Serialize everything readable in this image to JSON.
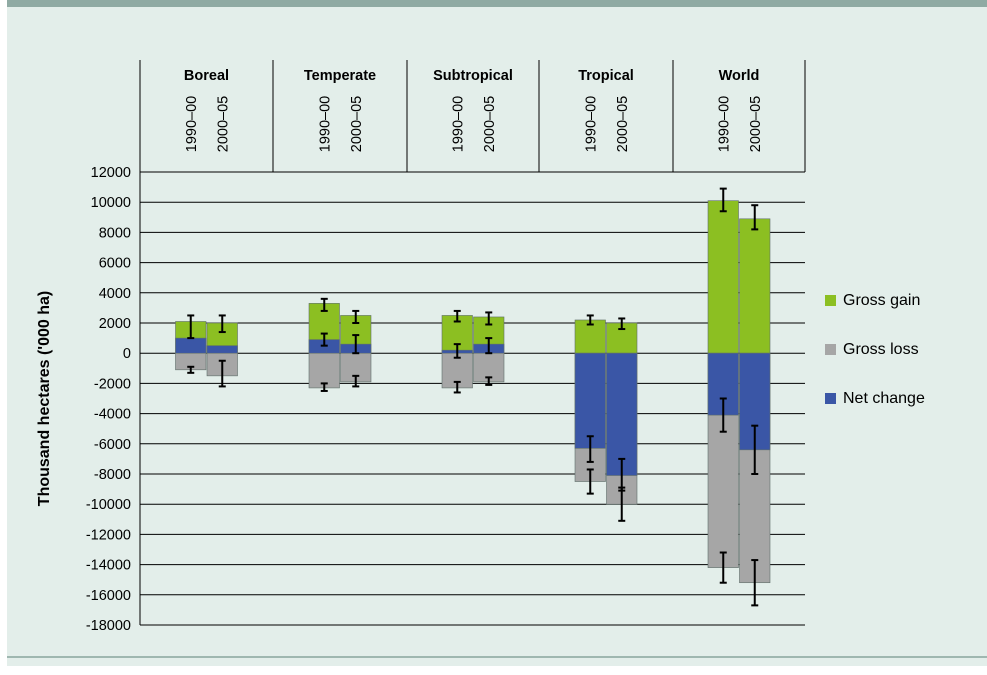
{
  "chart_data": {
    "type": "bar",
    "subtype": "stacked-with-error-bars",
    "ylabel": "Thousand hectares ('000 ha)",
    "ylim": [
      -18000,
      12000
    ],
    "yticks": [
      12000,
      10000,
      8000,
      6000,
      4000,
      2000,
      0,
      -2000,
      -4000,
      -6000,
      -8000,
      -10000,
      -12000,
      -14000,
      -16000,
      -18000
    ],
    "grid": true,
    "legend_position": "right",
    "series_styles": [
      {
        "name": "Gross gain",
        "color": "#8cbf22"
      },
      {
        "name": "Gross loss",
        "color": "#a6a6a6"
      },
      {
        "name": "Net change",
        "color": "#3a56a6"
      }
    ],
    "groups": [
      {
        "region": "Boreal",
        "periods": [
          {
            "label": "1990–00",
            "gain": 2100,
            "loss": -1100,
            "net": 1000,
            "err": {
              "gain": [
                1000,
                2500
              ],
              "loss": [
                -1300,
                -900
              ],
              "net": null
            }
          },
          {
            "label": "2000–05",
            "gain": 2000,
            "loss": -1500,
            "net": 500,
            "err": {
              "gain": [
                1400,
                2500
              ],
              "loss": [
                -2200,
                -500
              ],
              "net": null
            }
          }
        ]
      },
      {
        "region": "Temperate",
        "periods": [
          {
            "label": "1990–00",
            "gain": 3300,
            "loss": -2300,
            "net": 900,
            "err": {
              "gain": [
                2800,
                3600
              ],
              "loss": [
                -2500,
                -2000
              ],
              "net": [
                500,
                1300
              ]
            }
          },
          {
            "label": "2000–05",
            "gain": 2500,
            "loss": -1900,
            "net": 600,
            "err": {
              "gain": [
                2000,
                2800
              ],
              "loss": [
                -2200,
                -1500
              ],
              "net": [
                0,
                1200
              ]
            }
          }
        ]
      },
      {
        "region": "Subtropical",
        "periods": [
          {
            "label": "1990–00",
            "gain": 2500,
            "loss": -2300,
            "net": 200,
            "err": {
              "gain": [
                2100,
                2800
              ],
              "loss": [
                -2600,
                -1900
              ],
              "net": [
                -300,
                600
              ]
            }
          },
          {
            "label": "2000–05",
            "gain": 2400,
            "loss": -1900,
            "net": 600,
            "err": {
              "gain": [
                1900,
                2700
              ],
              "loss": [
                -2100,
                -1600
              ],
              "net": [
                0,
                1000
              ]
            }
          }
        ]
      },
      {
        "region": "Tropical",
        "periods": [
          {
            "label": "1990–00",
            "gain": 2200,
            "loss": -8500,
            "net": -6300,
            "err": {
              "gain": [
                1900,
                2500
              ],
              "loss": [
                -9300,
                -7700
              ],
              "net": [
                -7200,
                -5500
              ]
            }
          },
          {
            "label": "2000–05",
            "gain": 2000,
            "loss": -10000,
            "net": -8100,
            "err": {
              "gain": [
                1600,
                2300
              ],
              "loss": [
                -11100,
                -8900
              ],
              "net": [
                -9100,
                -7000
              ]
            }
          }
        ]
      },
      {
        "region": "World",
        "periods": [
          {
            "label": "1990–00",
            "gain": 10100,
            "loss": -14200,
            "net": -4100,
            "err": {
              "gain": [
                9400,
                10900
              ],
              "loss": [
                -15200,
                -13200
              ],
              "net": [
                -5200,
                -3000
              ]
            }
          },
          {
            "label": "2000–05",
            "gain": 8900,
            "loss": -15200,
            "net": -6400,
            "err": {
              "gain": [
                8200,
                9800
              ],
              "loss": [
                -16700,
                -13700
              ],
              "net": [
                -8000,
                -4800
              ]
            }
          }
        ]
      }
    ]
  }
}
